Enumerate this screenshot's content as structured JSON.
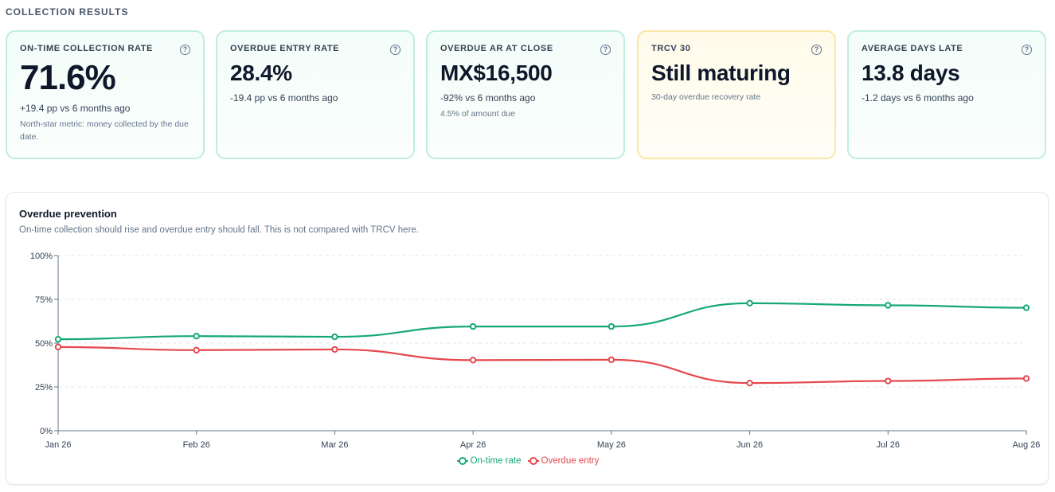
{
  "section": {
    "title": "COLLECTION RESULTS"
  },
  "kpis": [
    {
      "label": "ON-TIME COLLECTION RATE",
      "value": "71.6%",
      "delta": "+19.4 pp vs 6 months ago",
      "note": "North-star metric: money collected by the due date.",
      "help": "?"
    },
    {
      "label": "OVERDUE ENTRY RATE",
      "value": "28.4%",
      "delta": "-19.4 pp vs 6 months ago",
      "note": "",
      "help": "?"
    },
    {
      "label": "OVERDUE AR AT CLOSE",
      "value": "MX$16,500",
      "delta": "-92% vs 6 months ago",
      "note": "4.5% of amount due",
      "help": "?"
    },
    {
      "label": "TRCV 30",
      "value": "Still maturing",
      "delta": "",
      "note": "30-day overdue recovery rate",
      "help": "?"
    },
    {
      "label": "AVERAGE DAYS LATE",
      "value": "13.8 days",
      "delta": "-1.2 days vs 6 months ago",
      "note": "",
      "help": "?"
    }
  ],
  "panel": {
    "title": "Overdue prevention",
    "subtitle": "On-time collection should rise and overdue entry should fall. This is not compared with TRCV here."
  },
  "chart_data": {
    "type": "line",
    "categories": [
      "Jan 26",
      "Feb 26",
      "Mar 26",
      "Apr 26",
      "May 26",
      "Jun 26",
      "Jul 26",
      "Aug 26"
    ],
    "series": [
      {
        "name": "On-time rate",
        "color": "#16a874",
        "values": [
          52.2,
          54.0,
          53.6,
          59.5,
          59.5,
          72.8,
          71.6,
          70.2
        ]
      },
      {
        "name": "Overdue entry",
        "color": "#e5484d",
        "values": [
          47.8,
          46.0,
          46.4,
          40.3,
          40.5,
          27.2,
          28.4,
          29.8
        ]
      }
    ],
    "ylim": [
      0,
      100
    ],
    "yticks": [
      0,
      25,
      50,
      75,
      100
    ],
    "ytick_suffix": "%",
    "grid": true,
    "legend": "bottom-center"
  }
}
